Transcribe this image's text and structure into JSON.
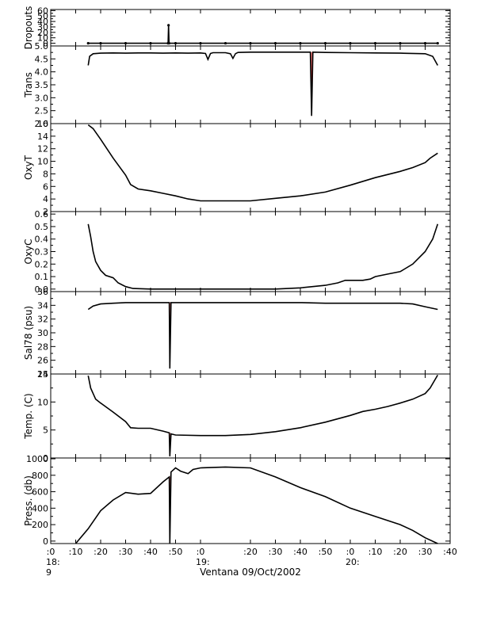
{
  "chart_data": {
    "type": "line",
    "xlabel": "Ventana 09/Oct/2002",
    "x_ticks": [
      ":0",
      ":10",
      ":20",
      ":30",
      ":40",
      ":50",
      ":0",
      ":20",
      ":30",
      ":40",
      ":50",
      ":0",
      ":10",
      ":20",
      ":30",
      ":40"
    ],
    "x_tick_minutes": [
      0,
      10,
      20,
      30,
      40,
      50,
      60,
      80,
      90,
      100,
      110,
      120,
      130,
      140,
      150,
      160
    ],
    "x_hour_labels": [
      {
        "minute": 0,
        "label": "18:"
      },
      {
        "minute": 60,
        "label": "19:"
      },
      {
        "minute": 120,
        "label": "20:"
      }
    ],
    "x_sub_label": "9",
    "xlim": [
      0,
      160
    ],
    "colors": {
      "data": "#000000",
      "spike": "#e03030"
    },
    "panels": [
      {
        "id": "dropouts",
        "ylabel": "Dropouts",
        "ylim": [
          -5,
          62
        ],
        "yticks": [
          0,
          10,
          20,
          30,
          40,
          50,
          60
        ],
        "series": [
          {
            "x": [
              15,
              20,
              30,
              40,
              47,
              47.2,
              47.4,
              50,
              60,
              70,
              80,
              90,
              100,
              110,
              120,
              130,
              140,
              150,
              155
            ],
            "y": [
              0,
              0,
              0,
              0,
              0,
              33,
              0,
              0,
              0,
              0,
              0,
              0,
              0,
              0,
              0,
              0,
              0,
              0,
              0
            ]
          }
        ]
      },
      {
        "id": "trans",
        "ylabel": "Trans",
        "ylim": [
          2.0,
          5.0
        ],
        "yticks": [
          2.0,
          2.5,
          3.0,
          3.5,
          4.0,
          4.5,
          5.0
        ],
        "series": [
          {
            "x": [
              15,
              15.6,
              17,
              20,
              25,
              30,
              35,
              40,
              45,
              50,
              55,
              60,
              62,
              63,
              64,
              65,
              70,
              72,
              73,
              74,
              75,
              80,
              90,
              100,
              104,
              104.5,
              105,
              110,
              120,
              130,
              140,
              150,
              153,
              155
            ],
            "y": [
              4.25,
              4.6,
              4.7,
              4.72,
              4.73,
              4.72,
              4.73,
              4.73,
              4.72,
              4.73,
              4.72,
              4.73,
              4.71,
              4.48,
              4.71,
              4.74,
              4.74,
              4.7,
              4.52,
              4.7,
              4.75,
              4.76,
              4.76,
              4.76,
              4.76,
              2.3,
              4.76,
              4.75,
              4.74,
              4.73,
              4.72,
              4.7,
              4.6,
              4.25
            ]
          }
        ]
      },
      {
        "id": "oxyt",
        "ylabel": "OxyT",
        "ylim": [
          2,
          16
        ],
        "yticks": [
          2,
          4,
          6,
          8,
          10,
          12,
          14,
          16
        ],
        "series": [
          {
            "x": [
              15,
              17,
              20,
              25,
              30,
              32,
              35,
              40,
              45,
              50,
              55,
              60,
              70,
              80,
              90,
              100,
              110,
              120,
              130,
              140,
              145,
              150,
              152,
              155
            ],
            "y": [
              15.8,
              15.2,
              13.5,
              10.5,
              7.8,
              6.3,
              5.6,
              5.3,
              4.9,
              4.5,
              4.0,
              3.7,
              3.7,
              3.7,
              4.1,
              4.5,
              5.1,
              6.2,
              7.4,
              8.4,
              9.0,
              9.8,
              10.5,
              11.3
            ]
          }
        ]
      },
      {
        "id": "oxyc",
        "ylabel": "OxyC",
        "ylim": [
          -0.02,
          0.62
        ],
        "yticks": [
          0.0,
          0.1,
          0.2,
          0.3,
          0.4,
          0.5,
          0.6
        ],
        "series": [
          {
            "x": [
              15,
              16,
              17,
              18,
              20,
              22,
              25,
              27,
              30,
              33,
              40,
              50,
              60,
              70,
              80,
              90,
              100,
              110,
              115,
              118,
              120,
              125,
              128,
              130,
              135,
              140,
              145,
              150,
              153,
              155
            ],
            "y": [
              0.52,
              0.42,
              0.3,
              0.22,
              0.15,
              0.11,
              0.09,
              0.05,
              0.02,
              0.005,
              0.0,
              0.0,
              0.0,
              0.0,
              0.0,
              0.0,
              0.01,
              0.03,
              0.05,
              0.07,
              0.07,
              0.07,
              0.08,
              0.1,
              0.12,
              0.14,
              0.2,
              0.3,
              0.4,
              0.52
            ]
          }
        ]
      },
      {
        "id": "sal78",
        "ylabel": "Sal78 (psu)",
        "ylim": [
          24,
          36
        ],
        "yticks": [
          24,
          26,
          28,
          30,
          32,
          34,
          36
        ],
        "series": [
          {
            "x": [
              15,
              17,
              20,
              25,
              30,
              40,
              47.5,
              47.7,
              48.2,
              50,
              60,
              70,
              80,
              90,
              100,
              110,
              120,
              130,
              140,
              145,
              150,
              155
            ],
            "y": [
              33.4,
              33.9,
              34.2,
              34.3,
              34.4,
              34.4,
              34.4,
              24.8,
              34.4,
              34.4,
              34.4,
              34.4,
              34.4,
              34.4,
              34.4,
              34.3,
              34.3,
              34.3,
              34.3,
              34.2,
              33.8,
              33.4
            ]
          }
        ]
      },
      {
        "id": "temp",
        "ylabel": "Temp. (C)",
        "ylim": [
          0,
          15
        ],
        "yticks": [
          0,
          5,
          10,
          15
        ],
        "series": [
          {
            "x": [
              15,
              16,
              18,
              20,
              25,
              30,
              32,
              35,
              40,
              45,
              47.5,
              47.7,
              48.2,
              50,
              60,
              70,
              80,
              90,
              100,
              110,
              120,
              125,
              130,
              135,
              140,
              145,
              150,
              152,
              155
            ],
            "y": [
              14.7,
              12.5,
              10.5,
              9.8,
              8.2,
              6.5,
              5.4,
              5.3,
              5.3,
              4.8,
              4.5,
              0.3,
              4.3,
              4.1,
              4.0,
              4.0,
              4.2,
              4.7,
              5.4,
              6.4,
              7.6,
              8.3,
              8.7,
              9.2,
              9.8,
              10.5,
              11.5,
              12.5,
              14.8
            ]
          }
        ]
      },
      {
        "id": "press",
        "ylabel": "Press. (db)",
        "ylim": [
          -30,
          1010
        ],
        "yticks": [
          0,
          200,
          400,
          600,
          800,
          1000
        ],
        "series": [
          {
            "x": [
              10,
              15,
              20,
              25,
              30,
              35,
              40,
              45,
              47.5,
              47.7,
              48.2,
              50,
              52,
              55,
              57,
              60,
              65,
              70,
              80,
              90,
              100,
              110,
              120,
              130,
              140,
              145,
              150,
              155
            ],
            "y": [
              -30,
              150,
              370,
              500,
              590,
              570,
              580,
              720,
              780,
              -30,
              840,
              890,
              850,
              820,
              870,
              890,
              895,
              900,
              890,
              780,
              650,
              540,
              400,
              300,
              200,
              130,
              40,
              -30
            ]
          }
        ]
      }
    ]
  }
}
